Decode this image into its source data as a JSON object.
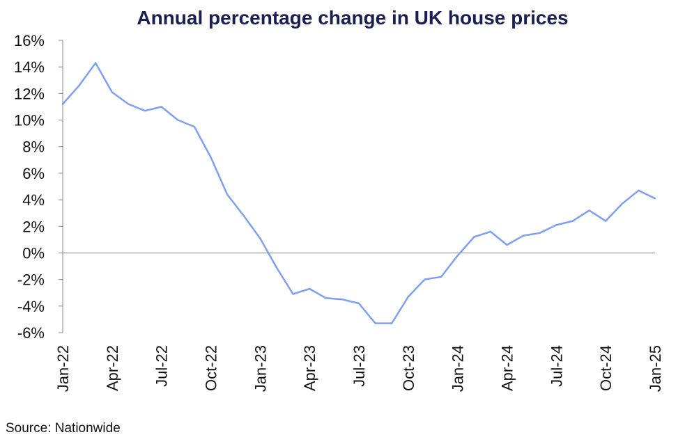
{
  "chart_data": {
    "type": "line",
    "title": "Annual percentage change in UK house prices",
    "source": "Source: Nationwide",
    "xlabel": "",
    "ylabel": "",
    "ylim": [
      -6,
      16
    ],
    "y_ticks": [
      "16%",
      "14%",
      "12%",
      "10%",
      "8%",
      "6%",
      "4%",
      "2%",
      "0%",
      "-2%",
      "-4%",
      "-6%"
    ],
    "x_ticks": [
      "Jan-22",
      "Apr-22",
      "Jul-22",
      "Oct-22",
      "Jan-23",
      "Apr-23",
      "Jul-23",
      "Oct-23",
      "Jan-24",
      "Apr-24",
      "Jul-24",
      "Oct-24",
      "Jan-25"
    ],
    "grid": false,
    "line_color": "#7f9ff0",
    "axis_color": "#888888",
    "title_color": "#1b1f4f",
    "series": [
      {
        "x": [
          "Jan-22",
          "Feb-22",
          "Mar-22",
          "Apr-22",
          "May-22",
          "Jun-22",
          "Jul-22",
          "Aug-22",
          "Sep-22",
          "Oct-22",
          "Nov-22",
          "Dec-22",
          "Jan-23",
          "Feb-23",
          "Mar-23",
          "Apr-23",
          "May-23",
          "Jun-23",
          "Jul-23",
          "Aug-23",
          "Sep-23",
          "Oct-23",
          "Nov-23",
          "Dec-23",
          "Jan-24",
          "Feb-24",
          "Mar-24",
          "Apr-24",
          "May-24",
          "Jun-24",
          "Jul-24",
          "Aug-24",
          "Sep-24",
          "Oct-24",
          "Nov-24",
          "Dec-24",
          "Jan-25"
        ],
        "values": [
          11.2,
          12.6,
          14.3,
          12.1,
          11.2,
          10.7,
          11.0,
          10.0,
          9.5,
          7.2,
          4.4,
          2.8,
          1.1,
          -1.1,
          -3.1,
          -2.7,
          -3.4,
          -3.5,
          -3.8,
          -5.3,
          -5.3,
          -3.3,
          -2.0,
          -1.8,
          -0.2,
          1.2,
          1.6,
          0.6,
          1.3,
          1.5,
          2.1,
          2.4,
          3.2,
          2.4,
          3.7,
          4.7,
          4.1
        ]
      }
    ]
  }
}
